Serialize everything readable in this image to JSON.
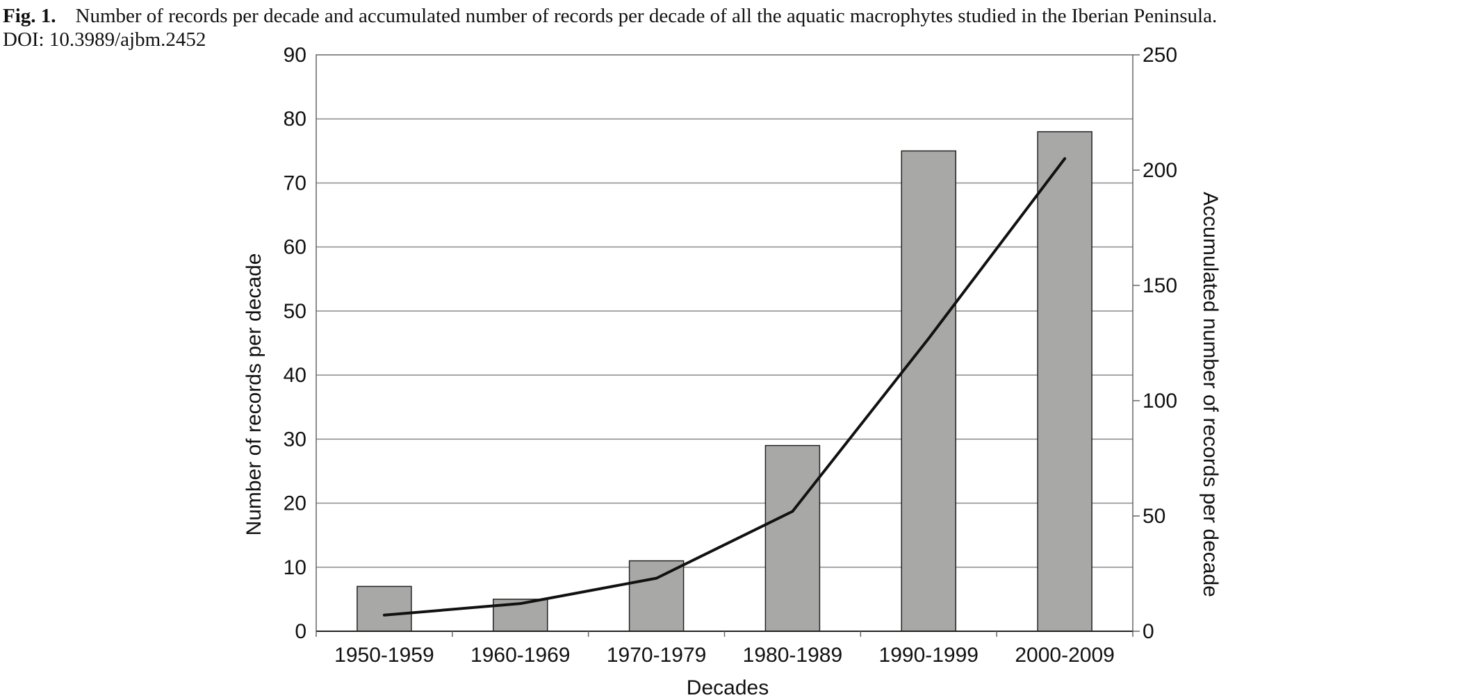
{
  "caption": {
    "label": "Fig. 1.",
    "text": "Number of records per decade and accumulated number of records per decade of all the aquatic macrophytes studied in the Iberian Peninsula.",
    "doi": "DOI: 10.3989/ajbm.2452"
  },
  "chart_data": {
    "type": "bar+line",
    "categories": [
      "1950-1959",
      "1960-1969",
      "1970-1979",
      "1980-1989",
      "1990-1999",
      "2000-2009"
    ],
    "series": [
      {
        "type": "bar",
        "axis": "left",
        "values": [
          7,
          5,
          11,
          29,
          75,
          78
        ],
        "color": "#a8a8a6"
      },
      {
        "type": "line",
        "axis": "right",
        "values": [
          7,
          12,
          23,
          52,
          127,
          205
        ],
        "color": "#111111"
      }
    ],
    "title": "",
    "xlabel": "Decades",
    "ylabel": "Number of records per decade",
    "ylabel_right": "Accumulated number of records per decade",
    "ylim": [
      0,
      90
    ],
    "ylim_right": [
      0,
      250
    ],
    "yticks": [
      0,
      10,
      20,
      30,
      40,
      50,
      60,
      70,
      80,
      90
    ],
    "yticks_right": [
      0,
      50,
      100,
      150,
      200,
      250
    ],
    "grid": true,
    "legend": "none"
  }
}
